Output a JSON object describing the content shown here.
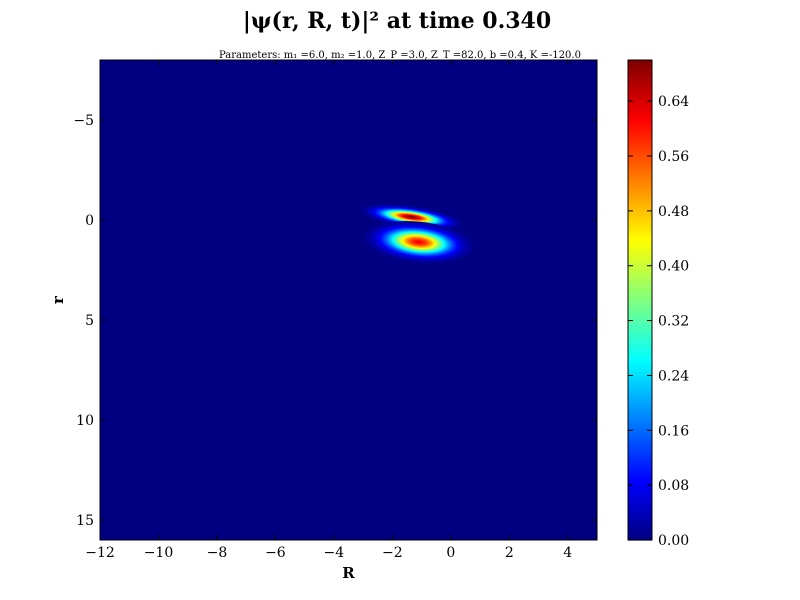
{
  "chart_data": {
    "type": "heatmap",
    "title": "|ψ(r, R, t)|² at time 0.340",
    "subtitle": "Parameters: m₁ =6.0, m₂ =1.0, Z_P =3.0, Z_T =82.0, b =0.4, K =-120.0",
    "xlabel": "R",
    "ylabel": "r",
    "xlim": [
      -12,
      5
    ],
    "ylim": [
      -8,
      16
    ],
    "y_inverted": true,
    "x_ticks": [
      "−12",
      "−10",
      "−8",
      "−6",
      "−4",
      "−2",
      "0",
      "2",
      "4"
    ],
    "x_tick_values": [
      -12,
      -10,
      -8,
      -6,
      -4,
      -2,
      0,
      2,
      4
    ],
    "y_ticks": [
      "−5",
      "0",
      "5",
      "10",
      "15"
    ],
    "y_tick_values": [
      -5,
      0,
      5,
      10,
      15
    ],
    "colorbar": {
      "colormap": "jet",
      "range": [
        0,
        0.7
      ],
      "ticks": [
        "0.00",
        "0.08",
        "0.16",
        "0.24",
        "0.32",
        "0.40",
        "0.48",
        "0.56",
        "0.64"
      ],
      "tick_values": [
        0,
        0.08,
        0.16,
        0.24,
        0.32,
        0.4,
        0.48,
        0.56,
        0.64
      ]
    },
    "peaks": [
      {
        "R": -1.35,
        "r": -0.15,
        "sigma_R": 0.55,
        "sigma_r": 0.17,
        "amplitude": 0.7,
        "tilt_deg": 8
      },
      {
        "R": -1.1,
        "r": 1.1,
        "sigma_R": 0.6,
        "sigma_r": 0.33,
        "amplitude": 0.62,
        "tilt_deg": 6
      }
    ],
    "background_value": 0.0
  }
}
